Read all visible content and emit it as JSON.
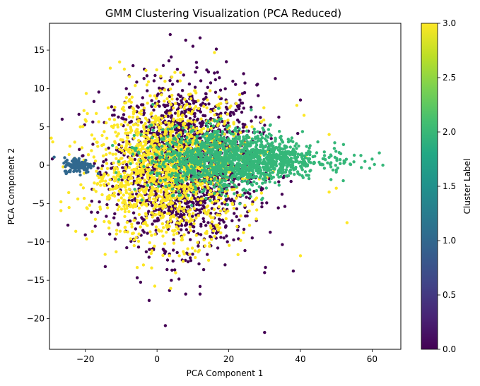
{
  "chart_data": {
    "type": "scatter",
    "title": "GMM Clustering Visualization (PCA Reduced)",
    "xlabel": "PCA Component 1",
    "ylabel": "PCA Component 2",
    "xlim": [
      -30,
      68
    ],
    "ylim": [
      -24,
      18.5
    ],
    "xticks": [
      "−20",
      "0",
      "20",
      "40",
      "60"
    ],
    "xtick_values": [
      -20,
      0,
      20,
      40,
      60
    ],
    "yticks": [
      "−20",
      "−15",
      "−10",
      "−5",
      "0",
      "5",
      "10",
      "15"
    ],
    "ytick_values": [
      -20,
      -15,
      -10,
      -5,
      0,
      5,
      10,
      15
    ],
    "grid": false,
    "colormap": "viridis",
    "colorbar": {
      "label": "Cluster Label",
      "range": [
        0,
        3
      ],
      "ticks": [
        "0.0",
        "0.5",
        "1.0",
        "1.5",
        "2.0",
        "2.5",
        "3.0"
      ],
      "tick_values": [
        0,
        0.5,
        1,
        1.5,
        2,
        2.5,
        3
      ]
    },
    "series": [
      {
        "label": 0,
        "color": "#440154",
        "center": [
          8,
          0
        ],
        "spread": [
          11,
          5.2
        ],
        "count": 1700,
        "outliers": [
          [
            8,
            16.3
          ],
          [
            12,
            16.6
          ],
          [
            10,
            15.5
          ],
          [
            12,
            -16.8
          ],
          [
            8,
            -16.8
          ],
          [
            30,
            -21.8
          ],
          [
            4,
            -15
          ],
          [
            12,
            -15.8
          ],
          [
            30,
            -14
          ],
          [
            38,
            -13.8
          ],
          [
            33,
            11.3
          ],
          [
            40,
            8.5
          ]
        ]
      },
      {
        "label": 1,
        "color": "#31688e",
        "center": [
          -22,
          0
        ],
        "spread": [
          2.2,
          0.5
        ],
        "count": 140,
        "outliers": []
      },
      {
        "label": 2,
        "color": "#35b779",
        "center": [
          22,
          0.8
        ],
        "spread": [
          13,
          2.0
        ],
        "count": 1500,
        "outliers": [
          [
            62,
            1.6
          ],
          [
            63,
            0
          ],
          [
            58,
            0.5
          ],
          [
            60,
            0.8
          ],
          [
            55,
            1.3
          ],
          [
            52,
            2.7
          ],
          [
            57,
            -0.3
          ]
        ]
      },
      {
        "label": 3,
        "color": "#fde725",
        "center": [
          3,
          -0.5
        ],
        "spread": [
          12,
          4.6
        ],
        "count": 1500,
        "outliers": [
          [
            53,
            -7.5
          ],
          [
            40,
            -11.8
          ],
          [
            50,
            -3
          ],
          [
            48,
            -3.5
          ],
          [
            39,
            7.8
          ],
          [
            41,
            6.5
          ],
          [
            48,
            4
          ]
        ]
      }
    ]
  }
}
